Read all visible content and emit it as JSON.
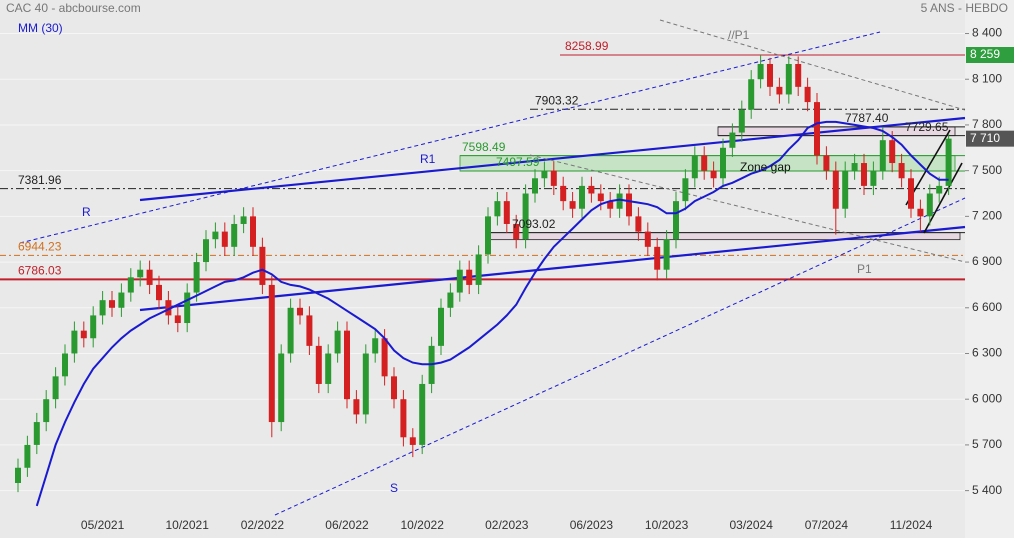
{
  "chart_data": {
    "type": "candlestick",
    "title": "CAC 40 - abcbourse.com",
    "subtitle": "5 ANS - HEBDO",
    "categories": [
      null,
      null,
      null,
      null,
      null,
      null,
      null,
      null,
      null,
      "05/2021",
      null,
      null,
      null,
      null,
      null,
      null,
      null,
      null,
      "10/2021",
      null,
      null,
      null,
      null,
      null,
      null,
      null,
      "02/2022",
      null,
      null,
      null,
      null,
      null,
      null,
      null,
      null,
      "06/2022",
      null,
      null,
      null,
      null,
      null,
      null,
      null,
      "10/2022",
      null,
      null,
      null,
      null,
      null,
      null,
      null,
      null,
      "02/2023",
      null,
      null,
      null,
      null,
      null,
      null,
      null,
      null,
      "06/2023",
      null,
      null,
      null,
      null,
      null,
      null,
      null,
      "10/2023",
      null,
      null,
      null,
      null,
      null,
      null,
      null,
      null,
      "03/2024",
      null,
      null,
      null,
      null,
      null,
      null,
      null,
      "07/2024",
      null,
      null,
      null,
      null,
      null,
      null,
      null,
      null,
      "11/2024",
      null,
      null,
      null,
      null
    ],
    "open": [
      5450,
      5550,
      5700,
      5850,
      6000,
      6150,
      6300,
      6450,
      6400,
      6550,
      6650,
      6600,
      6700,
      6800,
      6850,
      6750,
      6650,
      6550,
      6500,
      6700,
      6900,
      7050,
      7100,
      7000,
      7150,
      7200,
      7000,
      6750,
      5850,
      6300,
      6600,
      6550,
      6350,
      6100,
      6300,
      6450,
      6000,
      5900,
      6300,
      6400,
      6150,
      6000,
      5750,
      5700,
      6100,
      6350,
      6600,
      6700,
      6850,
      6750,
      6950,
      7200,
      7300,
      7150,
      7050,
      7350,
      7450,
      7500,
      7400,
      7300,
      7250,
      7400,
      7350,
      7300,
      7250,
      7350,
      7200,
      7100,
      7000,
      6850,
      7050,
      7300,
      7450,
      7600,
      7500,
      7450,
      7650,
      7750,
      7900,
      8100,
      8200,
      8050,
      8000,
      8200,
      8050,
      7950,
      7600,
      7500,
      7250,
      7500,
      7550,
      7400,
      7500,
      7700,
      7550,
      7450,
      7250,
      7200,
      7350,
      7400
    ],
    "high": [
      5610,
      5760,
      5910,
      6060,
      6210,
      6360,
      6510,
      6510,
      6610,
      6710,
      6710,
      6760,
      6860,
      6910,
      6910,
      6810,
      6710,
      6610,
      6760,
      6960,
      7110,
      7160,
      7160,
      7210,
      7260,
      7260,
      7060,
      6810,
      6360,
      6660,
      6660,
      6610,
      6410,
      6360,
      6510,
      6510,
      6060,
      6360,
      6460,
      6460,
      6210,
      6060,
      5810,
      6160,
      6410,
      6660,
      6760,
      6910,
      6910,
      7010,
      7260,
      7360,
      7360,
      7210,
      7410,
      7510,
      7560,
      7560,
      7460,
      7360,
      7460,
      7460,
      7410,
      7360,
      7410,
      7410,
      7260,
      7160,
      7060,
      7110,
      7360,
      7510,
      7660,
      7660,
      7560,
      7710,
      7810,
      7960,
      8160,
      8259,
      8240,
      8110,
      8250,
      8250,
      8110,
      8010,
      7660,
      7560,
      7560,
      7610,
      7610,
      7560,
      7787,
      7760,
      7610,
      7510,
      7310,
      7410,
      7460,
      7740
    ],
    "low": [
      5390,
      5490,
      5640,
      5790,
      5940,
      6090,
      6240,
      6340,
      6340,
      6490,
      6540,
      6540,
      6640,
      6740,
      6690,
      6590,
      6490,
      6440,
      6440,
      6640,
      6840,
      6990,
      6940,
      6940,
      7090,
      6940,
      6690,
      5750,
      5790,
      6240,
      6490,
      6290,
      6040,
      6040,
      6240,
      5940,
      5840,
      5840,
      6240,
      6090,
      5940,
      5690,
      5620,
      5640,
      6040,
      6290,
      6540,
      6640,
      6690,
      6690,
      6890,
      7140,
      7090,
      6990,
      6990,
      7290,
      7390,
      7340,
      7240,
      7190,
      7190,
      7290,
      7240,
      7190,
      7190,
      7140,
      7040,
      6940,
      6780,
      6790,
      6990,
      7240,
      7390,
      7440,
      7390,
      7390,
      7590,
      7690,
      7840,
      8040,
      7990,
      7940,
      7940,
      7990,
      7890,
      7540,
      7440,
      7080,
      7190,
      7440,
      7340,
      7340,
      7440,
      7490,
      7390,
      7190,
      7100,
      7140,
      7290,
      7340
    ],
    "close": [
      5550,
      5700,
      5850,
      6000,
      6150,
      6300,
      6450,
      6400,
      6550,
      6650,
      6600,
      6700,
      6800,
      6850,
      6750,
      6650,
      6550,
      6500,
      6700,
      6900,
      7050,
      7100,
      7000,
      7150,
      7200,
      7000,
      6750,
      5850,
      6300,
      6600,
      6550,
      6350,
      6100,
      6300,
      6450,
      6000,
      5900,
      6300,
      6400,
      6150,
      6000,
      5750,
      5700,
      6100,
      6350,
      6600,
      6700,
      6850,
      6750,
      6950,
      7200,
      7300,
      7150,
      7050,
      7350,
      7450,
      7500,
      7400,
      7300,
      7250,
      7400,
      7350,
      7300,
      7250,
      7350,
      7200,
      7100,
      7000,
      6850,
      7050,
      7300,
      7450,
      7600,
      7500,
      7450,
      7650,
      7750,
      7900,
      8100,
      8200,
      8050,
      8000,
      8200,
      8050,
      7950,
      7600,
      7500,
      7250,
      7500,
      7550,
      7400,
      7500,
      7700,
      7550,
      7450,
      7250,
      7200,
      7350,
      7400,
      7710
    ],
    "up_color": "#2a9a30",
    "down_color": "#d42020",
    "series": [
      {
        "name": "MM (30)",
        "color": "#1a1ad0",
        "values": [
          null,
          null,
          5300,
          5500,
          5700,
          5850,
          5980,
          6100,
          6200,
          6270,
          6340,
          6400,
          6450,
          6490,
          6530,
          6560,
          6590,
          6620,
          6650,
          6680,
          6710,
          6740,
          6770,
          6780,
          6800,
          6830,
          6850,
          6820,
          6770,
          6750,
          6740,
          6720,
          6690,
          6660,
          6620,
          6580,
          6540,
          6500,
          6460,
          6400,
          6320,
          6270,
          6240,
          6230,
          6230,
          6240,
          6260,
          6300,
          6340,
          6390,
          6440,
          6490,
          6550,
          6620,
          6730,
          6830,
          6920,
          7000,
          7060,
          7120,
          7180,
          7240,
          7280,
          7300,
          7310,
          7300,
          7290,
          7280,
          7260,
          7220,
          7220,
          7250,
          7300,
          7330,
          7360,
          7400,
          7420,
          7450,
          7480,
          7500,
          7530,
          7570,
          7640,
          7700,
          7780,
          7810,
          7820,
          7820,
          7810,
          7800,
          7790,
          7780,
          7760,
          7720,
          7670,
          7600,
          7540,
          7480,
          7440,
          7440
        ]
      }
    ],
    "ylim": [
      5240,
      8620
    ],
    "yticks": [
      {
        "value": 5400,
        "label": "5 400"
      },
      {
        "value": 5700,
        "label": "5 700"
      },
      {
        "value": 6000,
        "label": "6 000"
      },
      {
        "value": 6300,
        "label": "6 300"
      },
      {
        "value": 6600,
        "label": "6 600"
      },
      {
        "value": 6900,
        "label": "6 900"
      },
      {
        "value": 7200,
        "label": "7 200"
      },
      {
        "value": 7500,
        "label": "7 500"
      },
      {
        "value": 7800,
        "label": "7 800"
      },
      {
        "value": 8100,
        "label": "8 100"
      },
      {
        "value": 8400,
        "label": "8 400"
      }
    ],
    "grid": true,
    "levels": [
      {
        "value": 8258.99,
        "color": "#c0202a"
      },
      {
        "value": 7903.32,
        "color": "#222222"
      },
      {
        "value": 7787.4,
        "label": "7787.40",
        "color": "#222222"
      },
      {
        "value": 7729.65,
        "color": "#222222"
      },
      {
        "value": 7598.49,
        "color": "#2a9a30"
      },
      {
        "value": 7497.59,
        "color": "#2a9a30"
      },
      {
        "value": 7381.96,
        "color": "#222222"
      },
      {
        "value": 7093.02,
        "color": "#222222"
      },
      {
        "value": 6944.23,
        "color": "#d07020"
      },
      {
        "value": 6786.03,
        "color": "#c0202a"
      }
    ],
    "price_badges": [
      {
        "value": 8259,
        "label": "8 259",
        "color": "#2e9e3e"
      },
      {
        "value": 7710,
        "label": "7 710",
        "color": "#555555"
      }
    ],
    "annotations": [
      "//P1",
      "R1",
      "R",
      "S",
      "P1",
      "Zone gap"
    ]
  }
}
